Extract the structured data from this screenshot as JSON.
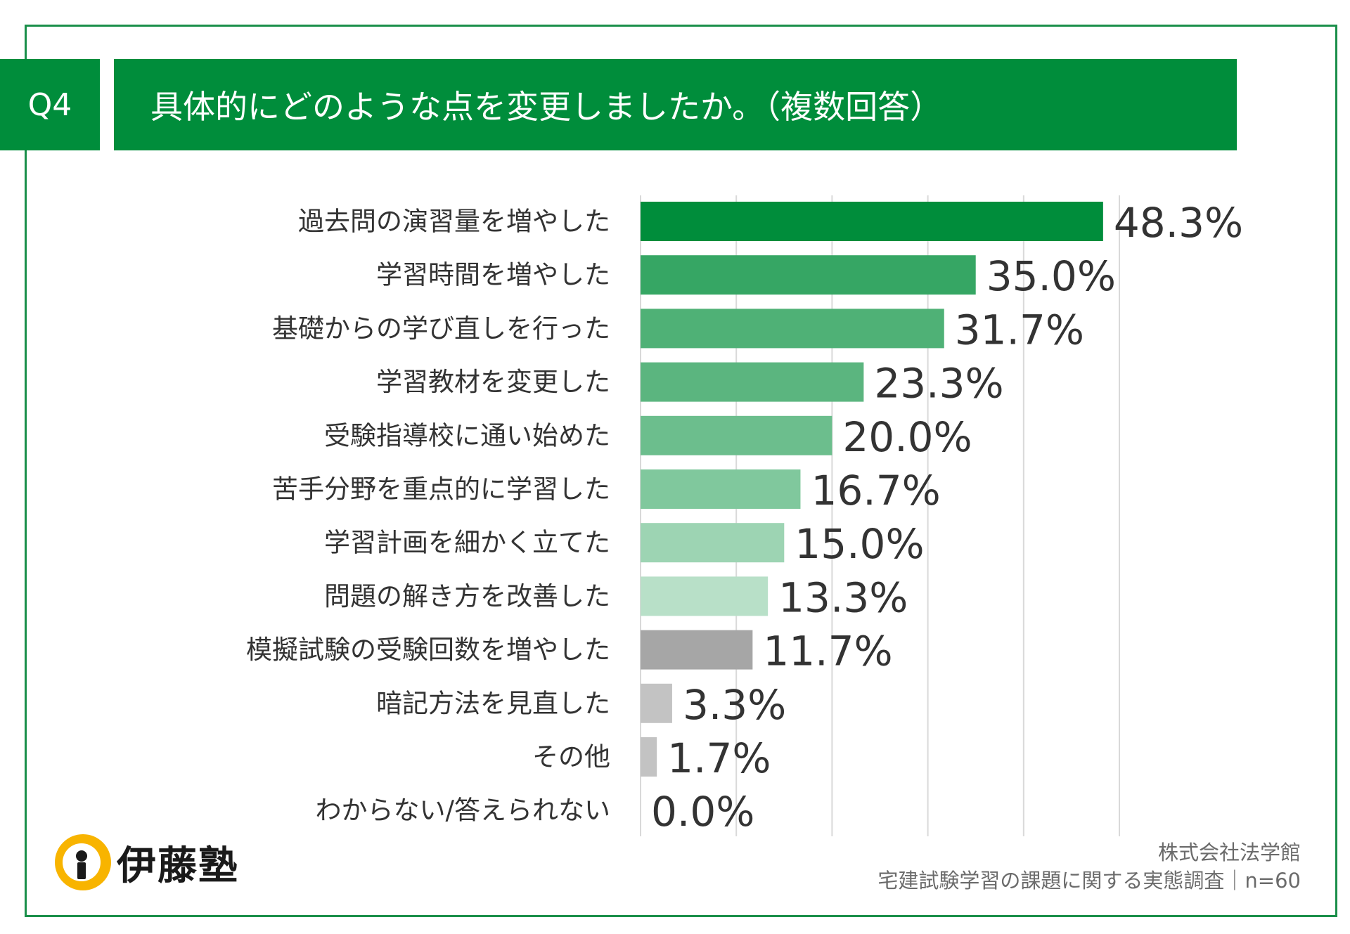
{
  "header": {
    "question_number": "Q4",
    "title": "具体的にどのような点を変更しましたか。（複数回答）"
  },
  "chart_data": {
    "type": "bar",
    "orientation": "horizontal",
    "title": "具体的にどのような点を変更しましたか。（複数回答）",
    "xlim": [
      0,
      50
    ],
    "grid": true,
    "categories": [
      "過去問の演習量を増やした",
      "学習時間を増やした",
      "基礎からの学び直しを行った",
      "学習教材を変更した",
      "受験指導校に通い始めた",
      "苦手分野を重点的に学習した",
      "学習計画を細かく立てた",
      "問題の解き方を改善した",
      "模擬試験の受験回数を増やした",
      "暗記方法を見直した",
      "その他",
      "わからない/答えられない"
    ],
    "values": [
      48.3,
      35.0,
      31.7,
      23.3,
      20.0,
      16.7,
      15.0,
      13.3,
      11.7,
      3.3,
      1.7,
      0.0
    ],
    "value_labels": [
      "48.3%",
      "35.0%",
      "31.7%",
      "23.3%",
      "20.0%",
      "16.7%",
      "15.0%",
      "13.3%",
      "11.7%",
      "3.3%",
      "1.7%",
      "0.0%"
    ],
    "colors": [
      "#008d3b",
      "#36a664",
      "#4fb176",
      "#5bb57f",
      "#6cbe8d",
      "#80c89d",
      "#9dd4b3",
      "#b8e0c8",
      "#a6a6a6",
      "#c3c3c3",
      "#c3c3c3",
      "#c3c3c3"
    ],
    "grid_color": "#d9d9d9"
  },
  "logo": {
    "name": "伊藤塾",
    "icon": "keyhole-logo-icon",
    "colors": {
      "circle": "#f8b400",
      "mark": "#1a1a1a"
    }
  },
  "footer": {
    "company": "株式会社法学館",
    "survey": "宅建試験学習の課題に関する実態調査｜n=60"
  }
}
